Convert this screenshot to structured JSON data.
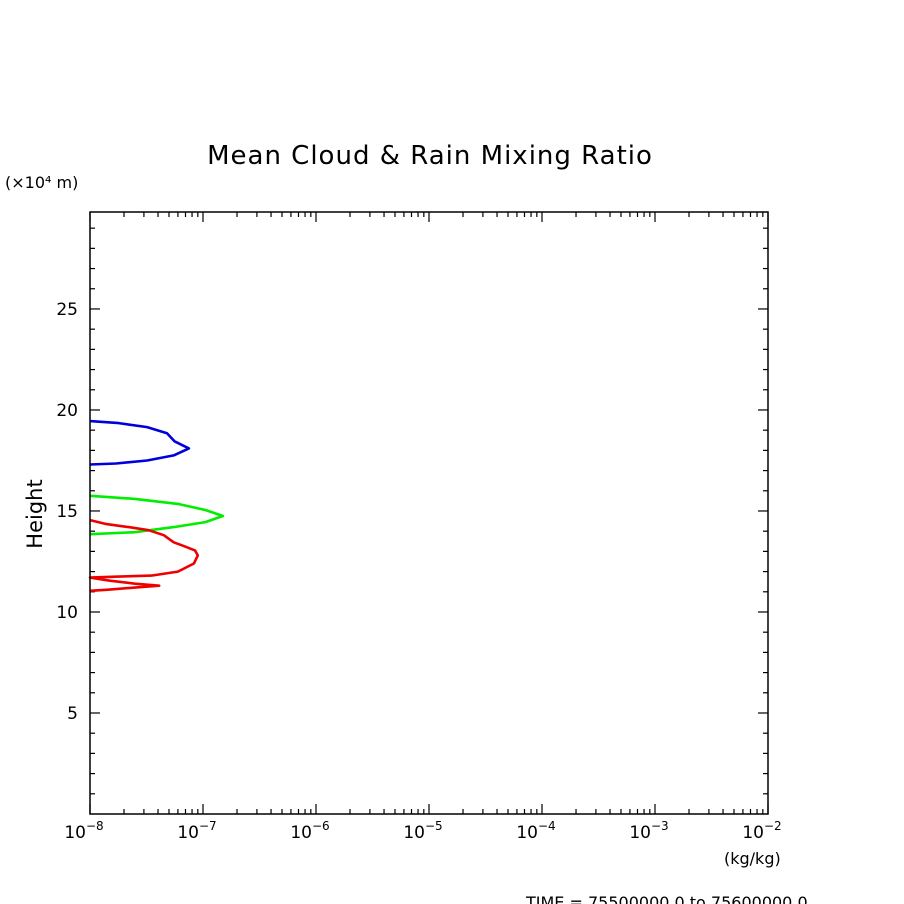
{
  "chart_data": {
    "type": "line",
    "title": "Mean Cloud & Rain Mixing Ratio",
    "ylabel": "Height",
    "yunit": "(×10⁴ m)",
    "xunit": "(kg/kg)",
    "footer": "TIME = 75500000.0 to 75600000.0",
    "x_scale": "log",
    "xlim": [
      1e-08,
      0.01
    ],
    "ylim": [
      0,
      29.8
    ],
    "x_ticks": [
      {
        "value": 1e-08,
        "base": "10",
        "exp": "−8"
      },
      {
        "value": 1e-07,
        "base": "10",
        "exp": "−7"
      },
      {
        "value": 1e-06,
        "base": "10",
        "exp": "−6"
      },
      {
        "value": 1e-05,
        "base": "10",
        "exp": "−5"
      },
      {
        "value": 0.0001,
        "base": "10",
        "exp": "−4"
      },
      {
        "value": 0.001,
        "base": "10",
        "exp": "−3"
      },
      {
        "value": 0.01,
        "base": "10",
        "exp": "−2"
      }
    ],
    "y_ticks": [
      5,
      10,
      15,
      20,
      25
    ],
    "grid": false,
    "series": [
      {
        "color": "#0000dd",
        "points": [
          [
            1e-08,
            19.45
          ],
          [
            1.8e-08,
            19.35
          ],
          [
            3.2e-08,
            19.15
          ],
          [
            4.8e-08,
            18.85
          ],
          [
            5.6e-08,
            18.45
          ],
          [
            7.5e-08,
            18.1
          ],
          [
            5.5e-08,
            17.75
          ],
          [
            3.2e-08,
            17.5
          ],
          [
            1.7e-08,
            17.35
          ],
          [
            1e-08,
            17.3
          ]
        ]
      },
      {
        "color": "#00ee00",
        "points": [
          [
            1e-08,
            15.75
          ],
          [
            2.5e-08,
            15.6
          ],
          [
            6e-08,
            15.35
          ],
          [
            1.05e-07,
            15.05
          ],
          [
            1.5e-07,
            14.75
          ],
          [
            1.05e-07,
            14.45
          ],
          [
            5.5e-08,
            14.2
          ],
          [
            2.5e-08,
            13.95
          ],
          [
            1e-08,
            13.85
          ]
        ]
      },
      {
        "color": "#ee0000",
        "points": [
          [
            1e-08,
            14.55
          ],
          [
            1.4e-08,
            14.35
          ],
          [
            2.2e-08,
            14.2
          ],
          [
            3.3e-08,
            14.05
          ],
          [
            4.5e-08,
            13.8
          ],
          [
            5.5e-08,
            13.45
          ],
          [
            6.5e-08,
            13.3
          ],
          [
            8.5e-08,
            13.05
          ],
          [
            9e-08,
            12.8
          ],
          [
            8.3e-08,
            12.4
          ],
          [
            6e-08,
            12.0
          ],
          [
            3.5e-08,
            11.8
          ],
          [
            1.8e-08,
            11.75
          ],
          [
            1e-08,
            11.7
          ],
          [
            1.5e-08,
            11.55
          ],
          [
            2.5e-08,
            11.4
          ],
          [
            4.1e-08,
            11.3
          ],
          [
            2.4e-08,
            11.2
          ],
          [
            1.4e-08,
            11.1
          ],
          [
            1e-08,
            11.05
          ]
        ]
      }
    ]
  }
}
